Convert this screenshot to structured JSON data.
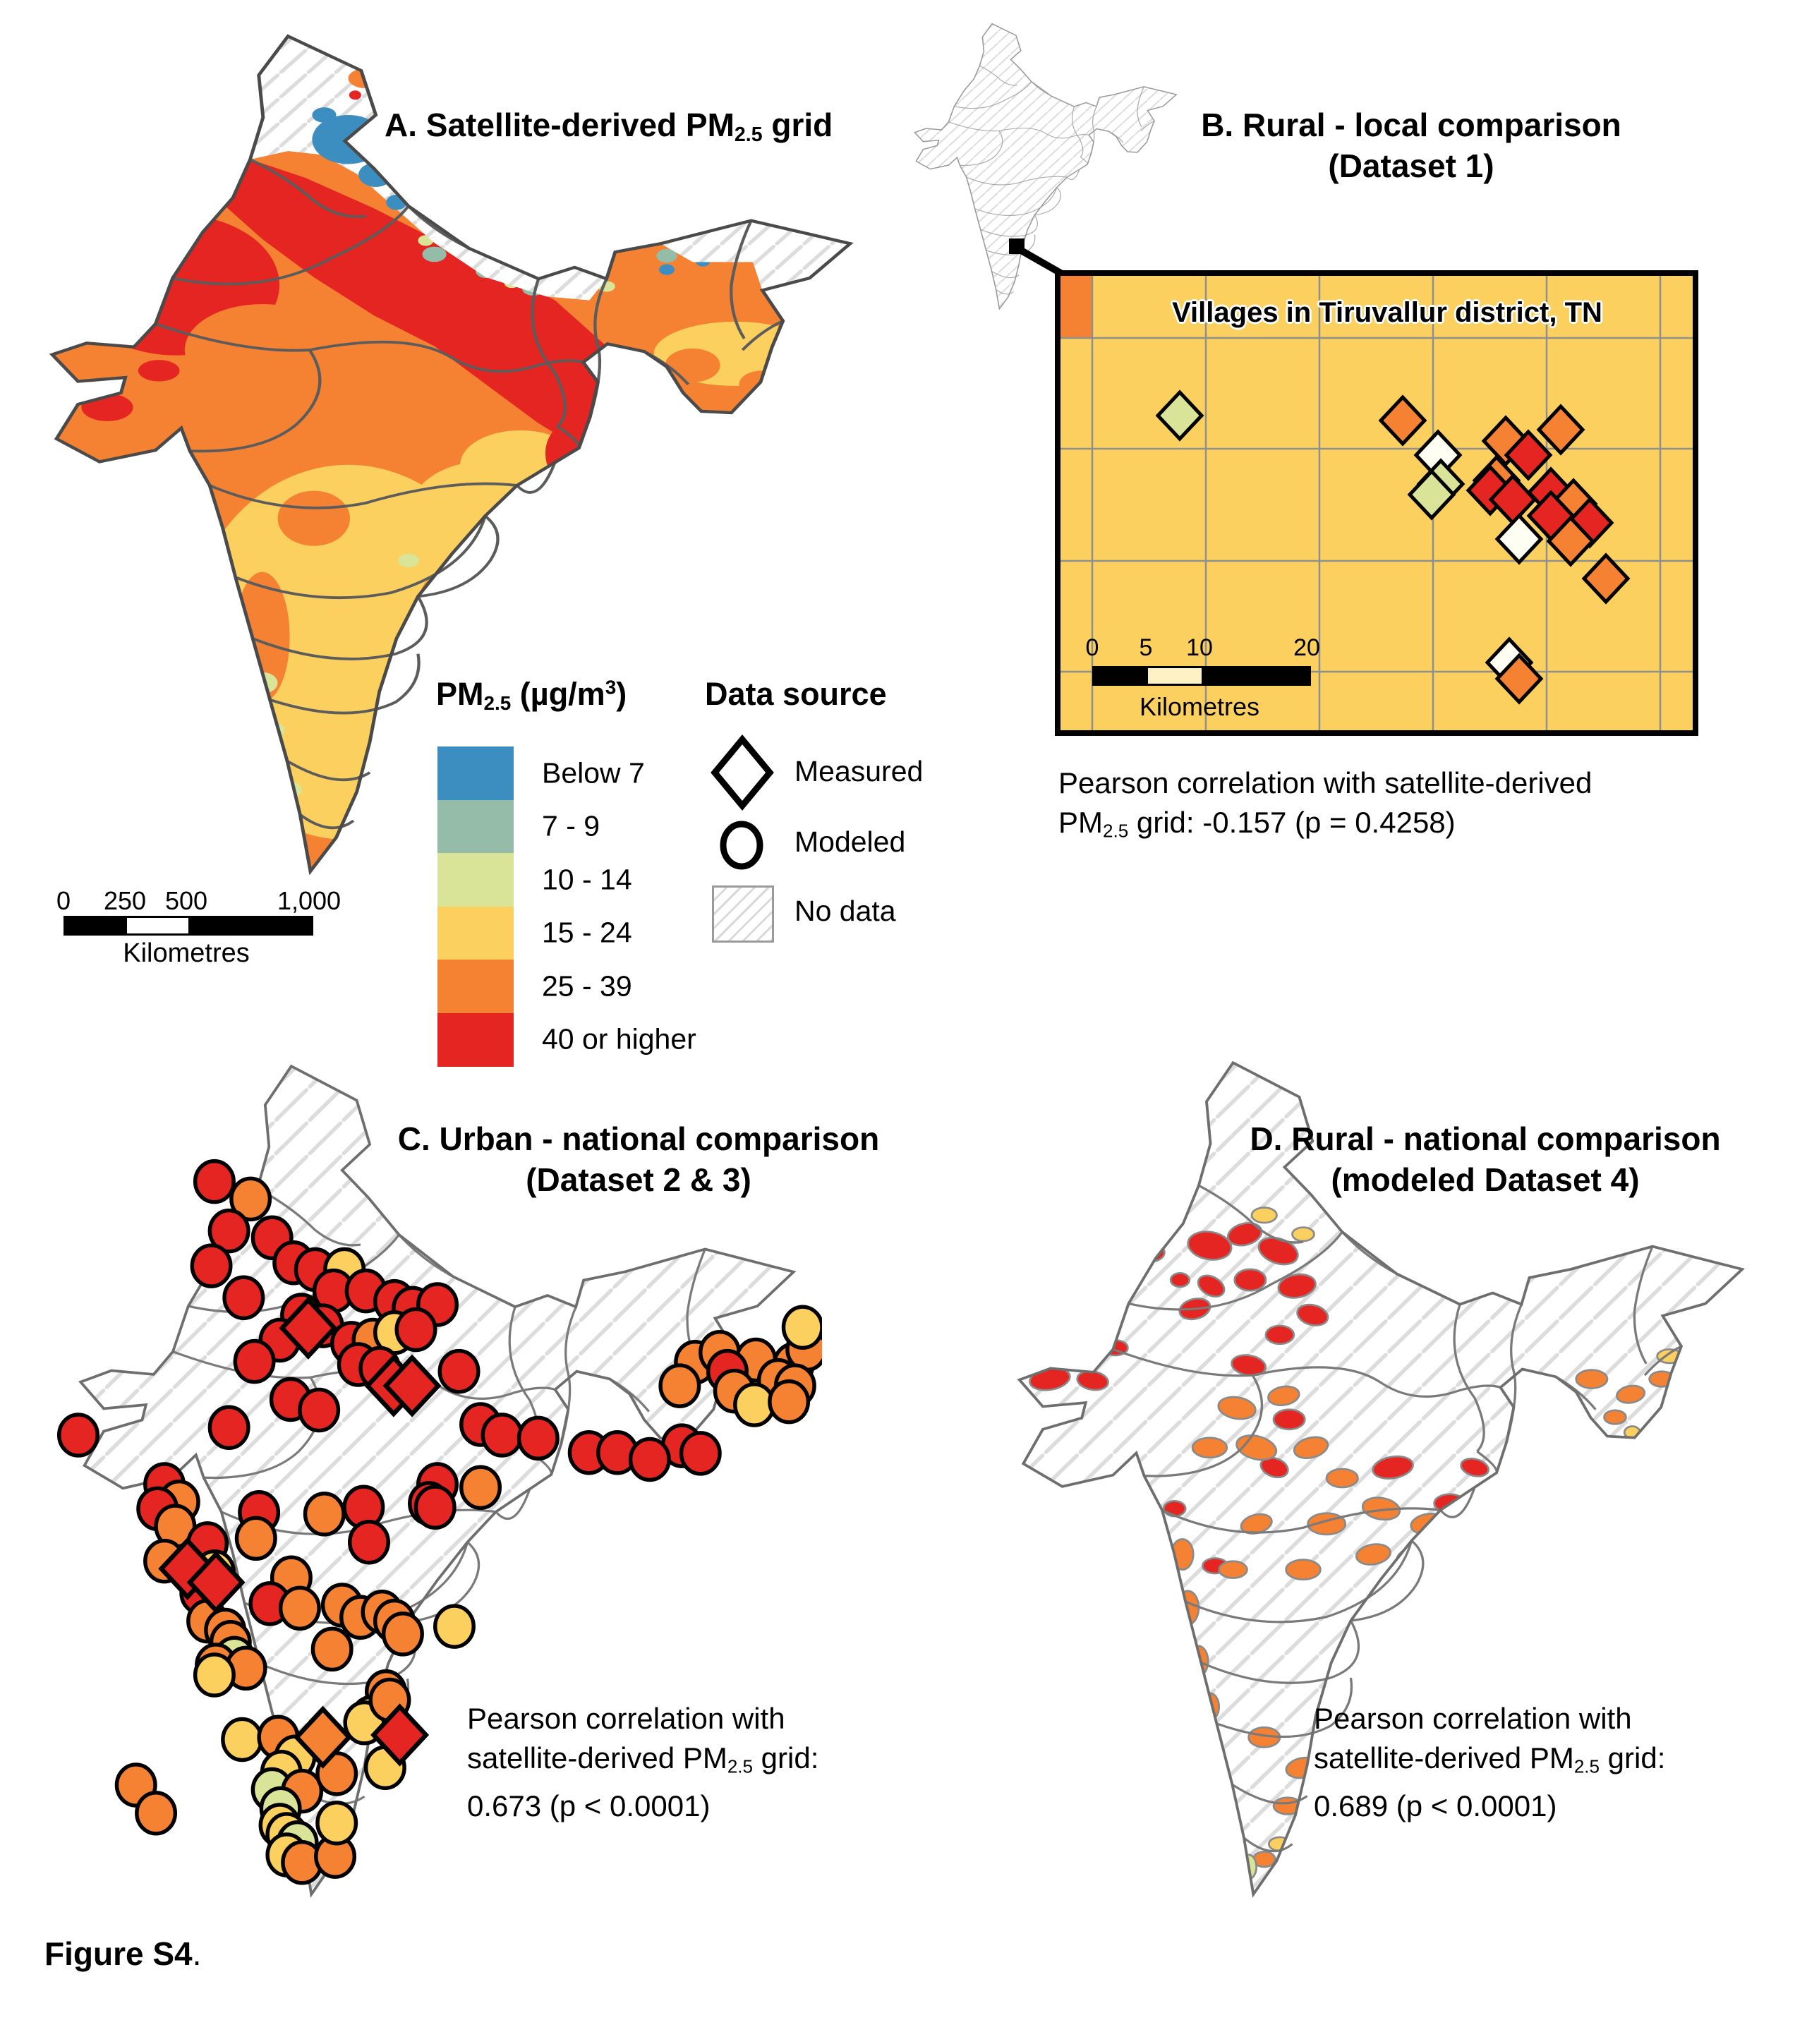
{
  "colors": {
    "R": "#E52522",
    "O": "#F58233",
    "Y": "#FCD05E",
    "G": "#D9E498",
    "W": "#FFFEF2",
    "teal": "#94BCA8",
    "blue": "#3D8EC0",
    "inset_bg": "#FCD05E",
    "inset_grid": "#8f8f8f",
    "hatch_line": "#dcdcdc",
    "state_border": "#6e6e6e"
  },
  "figure": {
    "label_bold": "Figure S4",
    "label_period": "."
  },
  "panelA": {
    "title": {
      "pre": "A. Satellite-derived PM",
      "sub": "2.5",
      "post": " grid"
    },
    "legend": {
      "title": {
        "pre": "PM",
        "sub": "2.5",
        "mid": " (µg/m",
        "sup": "3",
        "post": ")"
      },
      "classes": [
        {
          "label": "Below 7",
          "color": "#3D8EC0"
        },
        {
          "label": "7 - 9",
          "color": "#94BCA8"
        },
        {
          "label": "10 - 14",
          "color": "#D9E498"
        },
        {
          "label": "15 - 24",
          "color": "#FCD05E"
        },
        {
          "label": "25 - 39",
          "color": "#F58233"
        },
        {
          "label": "40 or higher",
          "color": "#E52522"
        }
      ]
    },
    "datasource": {
      "title": "Data source",
      "measured": "Measured",
      "modeled": "Modeled",
      "nodata": "No data"
    },
    "scalebar": {
      "ticks": [
        "0",
        "250",
        "500",
        "1,000"
      ],
      "unit": "Kilometres"
    }
  },
  "panelB": {
    "title_line1": "B. Rural - local comparison",
    "title_line2": "(Dataset 1)",
    "inset_title": "Villages in Tiruvallur district, TN",
    "scalebar": {
      "ticks": [
        "0",
        "5",
        "10",
        "20"
      ],
      "unit": "Kilometres"
    },
    "caption_line1": "Pearson correlation with satellite-derived",
    "caption_pm": "PM",
    "caption_sub": "2.5",
    "caption_rest": " grid: -0.157 (p = 0.4258)",
    "correlation": -0.157,
    "p_value": "0.4258",
    "village_diamonds": [
      [
        169,
        198,
        "G"
      ],
      [
        485,
        205,
        "O"
      ],
      [
        535,
        254,
        "W"
      ],
      [
        539,
        295,
        "G"
      ],
      [
        526,
        310,
        "G"
      ],
      [
        631,
        234,
        "O"
      ],
      [
        663,
        254,
        "R"
      ],
      [
        709,
        218,
        "O"
      ],
      [
        618,
        290,
        "O"
      ],
      [
        609,
        304,
        "R"
      ],
      [
        641,
        317,
        "R"
      ],
      [
        695,
        307,
        "R"
      ],
      [
        727,
        323,
        "O"
      ],
      [
        695,
        340,
        "R"
      ],
      [
        750,
        350,
        "R"
      ],
      [
        723,
        376,
        "O"
      ],
      [
        650,
        373,
        "W"
      ],
      [
        773,
        429,
        "O"
      ],
      [
        636,
        548,
        "W"
      ],
      [
        650,
        571,
        "O"
      ]
    ]
  },
  "panelC": {
    "title_line1": "C. Urban - national comparison",
    "title_line2": "(Dataset 2 & 3)",
    "caption_line1": "Pearson correlation with",
    "caption_line2_pre": "satellite-derived PM",
    "caption_sub": "2.5",
    "caption_line2_post": " grid:",
    "caption_line3": "0.673 (p < 0.0001)",
    "correlation": 0.673,
    "p_value": "< 0.0001",
    "circles": [
      [
        230,
        167,
        "R"
      ],
      [
        277,
        190,
        "O"
      ],
      [
        249,
        232,
        "R"
      ],
      [
        305,
        241,
        "R"
      ],
      [
        226,
        278,
        "R"
      ],
      [
        333,
        274,
        "R"
      ],
      [
        361,
        283,
        "R"
      ],
      [
        399,
        283,
        "Y"
      ],
      [
        385,
        311,
        "R"
      ],
      [
        427,
        311,
        "R"
      ],
      [
        464,
        325,
        "R"
      ],
      [
        488,
        334,
        "R"
      ],
      [
        520,
        329,
        "R"
      ],
      [
        268,
        320,
        "R"
      ],
      [
        343,
        343,
        "R"
      ],
      [
        371,
        357,
        "R"
      ],
      [
        315,
        376,
        "R"
      ],
      [
        408,
        380,
        "R"
      ],
      [
        436,
        376,
        "O"
      ],
      [
        464,
        366,
        "Y"
      ],
      [
        492,
        362,
        "R"
      ],
      [
        417,
        408,
        "R"
      ],
      [
        445,
        413,
        "R"
      ],
      [
        282,
        404,
        "R"
      ],
      [
        329,
        454,
        "R"
      ],
      [
        366,
        468,
        "R"
      ],
      [
        249,
        491,
        "R"
      ],
      [
        548,
        417,
        "R"
      ],
      [
        576,
        487,
        "R"
      ],
      [
        604,
        501,
        "R"
      ],
      [
        651,
        505,
        "R"
      ],
      [
        717,
        524,
        "R"
      ],
      [
        754,
        524,
        "R"
      ],
      [
        838,
        515,
        "R"
      ],
      [
        520,
        566,
        "R"
      ],
      [
        576,
        570,
        "O"
      ],
      [
        796,
        533,
        "R"
      ],
      [
        862,
        525,
        "R"
      ],
      [
        855,
        405,
        "O"
      ],
      [
        887,
        392,
        "O"
      ],
      [
        934,
        402,
        "O"
      ],
      [
        897,
        417,
        "R"
      ],
      [
        983,
        408,
        "O"
      ],
      [
        1000,
        388,
        "O"
      ],
      [
        995,
        359,
        "Y"
      ],
      [
        963,
        429,
        "O"
      ],
      [
        985,
        436,
        "O"
      ],
      [
        906,
        443,
        "O"
      ],
      [
        932,
        461,
        "Y"
      ],
      [
        977,
        457,
        "O"
      ],
      [
        835,
        436,
        "O"
      ],
      [
        53,
        501,
        "R"
      ],
      [
        165,
        566,
        "R"
      ],
      [
        184,
        589,
        "O"
      ],
      [
        156,
        598,
        "R"
      ],
      [
        179,
        621,
        "O"
      ],
      [
        221,
        644,
        "R"
      ],
      [
        165,
        667,
        "O"
      ],
      [
        212,
        709,
        "R"
      ],
      [
        230,
        681,
        "Y"
      ],
      [
        221,
        746,
        "O"
      ],
      [
        288,
        603,
        "R"
      ],
      [
        373,
        605,
        "O"
      ],
      [
        424,
        596,
        "R"
      ],
      [
        509,
        591,
        "R"
      ],
      [
        517,
        596,
        "R"
      ],
      [
        284,
        637,
        "O"
      ],
      [
        431,
        642,
        "R"
      ],
      [
        330,
        689,
        "O"
      ],
      [
        302,
        723,
        "R"
      ],
      [
        341,
        729,
        "O"
      ],
      [
        396,
        725,
        "O"
      ],
      [
        420,
        741,
        "O"
      ],
      [
        448,
        734,
        "O"
      ],
      [
        464,
        746,
        "O"
      ],
      [
        475,
        763,
        "O"
      ],
      [
        542,
        753,
        "Y"
      ],
      [
        383,
        783,
        "O"
      ],
      [
        244,
        758,
        "O"
      ],
      [
        251,
        774,
        "O"
      ],
      [
        256,
        795,
        "G"
      ],
      [
        232,
        804,
        "O"
      ],
      [
        271,
        808,
        "O"
      ],
      [
        230,
        817,
        "Y"
      ],
      [
        453,
        839,
        "O"
      ],
      [
        434,
        873,
        "Y"
      ],
      [
        425,
        880,
        "Y"
      ],
      [
        458,
        850,
        "O"
      ],
      [
        128,
        962,
        "O"
      ],
      [
        154,
        999,
        "O"
      ],
      [
        266,
        902,
        "Y"
      ],
      [
        313,
        899,
        "O"
      ],
      [
        335,
        925,
        "Y"
      ],
      [
        317,
        945,
        "Y"
      ],
      [
        305,
        968,
        "G"
      ],
      [
        344,
        970,
        "O"
      ],
      [
        316,
        993,
        "G"
      ],
      [
        315,
        1015,
        "Y"
      ],
      [
        324,
        1027,
        "Y"
      ],
      [
        338,
        1038,
        "G"
      ],
      [
        324,
        1054,
        "Y"
      ],
      [
        344,
        1064,
        "O"
      ],
      [
        387,
        1056,
        "O"
      ],
      [
        389,
        1012,
        "Y"
      ],
      [
        389,
        947,
        "O"
      ],
      [
        452,
        939,
        "Y"
      ]
    ],
    "diamonds": [
      [
        352,
        360,
        "R"
      ],
      [
        463,
        436,
        "R"
      ],
      [
        487,
        436,
        "R"
      ],
      [
        195,
        677,
        "R"
      ],
      [
        232,
        695,
        "R"
      ],
      [
        371,
        899,
        "O"
      ],
      [
        471,
        896,
        "R"
      ]
    ]
  },
  "panelD": {
    "title_line1": "D. Rural - national comparison",
    "title_line2": "(modeled Dataset 4)",
    "caption_line1": "Pearson correlation with",
    "caption_line2_pre": "satellite-derived PM",
    "caption_sub": "2.5",
    "caption_line2_post": " grid:",
    "caption_line3": "0.689 (p < 0.0001)",
    "correlation": 0.689,
    "p_value": "< 0.0001",
    "district_blobs": [
      [
        300,
        255,
        28,
        18,
        10,
        "R"
      ],
      [
        345,
        240,
        22,
        14,
        -15,
        "R"
      ],
      [
        388,
        262,
        26,
        16,
        20,
        "R"
      ],
      [
        352,
        300,
        20,
        14,
        0,
        "R"
      ],
      [
        302,
        308,
        18,
        12,
        30,
        "R"
      ],
      [
        412,
        308,
        24,
        15,
        -10,
        "R"
      ],
      [
        432,
        346,
        20,
        13,
        15,
        "R"
      ],
      [
        390,
        372,
        18,
        12,
        0,
        "R"
      ],
      [
        262,
        300,
        12,
        9,
        0,
        "R"
      ],
      [
        95,
        430,
        26,
        14,
        -10,
        "R"
      ],
      [
        150,
        432,
        20,
        12,
        10,
        "R"
      ],
      [
        179,
        389,
        16,
        10,
        0,
        "R"
      ],
      [
        224,
        264,
        18,
        12,
        0,
        "R"
      ],
      [
        281,
        338,
        20,
        13,
        -15,
        "R"
      ],
      [
        350,
        412,
        22,
        13,
        10,
        "R"
      ],
      [
        402,
        483,
        20,
        13,
        0,
        "R"
      ],
      [
        383,
        546,
        18,
        12,
        20,
        "R"
      ],
      [
        535,
        546,
        26,
        14,
        -10,
        "R"
      ],
      [
        608,
        593,
        20,
        12,
        0,
        "R"
      ],
      [
        640,
        546,
        18,
        11,
        15,
        "R"
      ],
      [
        561,
        663,
        22,
        13,
        -20,
        "R"
      ],
      [
        307,
        675,
        16,
        10,
        0,
        "R"
      ],
      [
        212,
        734,
        12,
        18,
        0,
        "R"
      ],
      [
        255,
        600,
        14,
        10,
        0,
        "R"
      ],
      [
        335,
        468,
        24,
        14,
        10,
        "O"
      ],
      [
        395,
        452,
        20,
        12,
        -10,
        "O"
      ],
      [
        300,
        520,
        22,
        13,
        0,
        "O"
      ],
      [
        360,
        520,
        26,
        15,
        15,
        "O"
      ],
      [
        430,
        520,
        22,
        13,
        -15,
        "O"
      ],
      [
        470,
        560,
        20,
        12,
        0,
        "O"
      ],
      [
        520,
        600,
        24,
        14,
        10,
        "O"
      ],
      [
        580,
        620,
        22,
        13,
        -10,
        "O"
      ],
      [
        640,
        640,
        20,
        12,
        0,
        "O"
      ],
      [
        650,
        600,
        18,
        11,
        10,
        "O"
      ],
      [
        450,
        620,
        24,
        14,
        0,
        "O"
      ],
      [
        510,
        660,
        22,
        13,
        -10,
        "O"
      ],
      [
        560,
        700,
        20,
        12,
        10,
        "O"
      ],
      [
        420,
        680,
        22,
        13,
        0,
        "O"
      ],
      [
        360,
        620,
        20,
        12,
        -15,
        "O"
      ],
      [
        330,
        680,
        18,
        11,
        0,
        "O"
      ],
      [
        265,
        660,
        14,
        20,
        0,
        "O"
      ],
      [
        272,
        730,
        14,
        22,
        0,
        "O"
      ],
      [
        285,
        800,
        13,
        20,
        0,
        "O"
      ],
      [
        300,
        860,
        12,
        18,
        0,
        "O"
      ],
      [
        790,
        430,
        20,
        12,
        0,
        "O"
      ],
      [
        840,
        450,
        18,
        11,
        -10,
        "O"
      ],
      [
        760,
        470,
        16,
        10,
        10,
        "O"
      ],
      [
        880,
        430,
        16,
        10,
        0,
        "O"
      ],
      [
        820,
        480,
        14,
        9,
        0,
        "O"
      ],
      [
        370,
        900,
        20,
        13,
        0,
        "O"
      ],
      [
        420,
        940,
        22,
        13,
        -10,
        "O"
      ],
      [
        400,
        990,
        18,
        11,
        0,
        "O"
      ],
      [
        430,
        1050,
        16,
        12,
        10,
        "O"
      ],
      [
        370,
        1060,
        14,
        10,
        0,
        "O"
      ],
      [
        410,
        1105,
        12,
        9,
        0,
        "O"
      ],
      [
        370,
        215,
        16,
        10,
        0,
        "Y"
      ],
      [
        420,
        240,
        14,
        9,
        0,
        "Y"
      ],
      [
        480,
        820,
        22,
        13,
        0,
        "Y"
      ],
      [
        530,
        800,
        20,
        12,
        -10,
        "Y"
      ],
      [
        560,
        850,
        18,
        11,
        0,
        "Y"
      ],
      [
        500,
        870,
        16,
        10,
        10,
        "Y"
      ],
      [
        615,
        660,
        12,
        8,
        0,
        "Y"
      ],
      [
        390,
        1040,
        14,
        9,
        0,
        "Y"
      ],
      [
        450,
        980,
        14,
        9,
        0,
        "Y"
      ],
      [
        890,
        400,
        16,
        9,
        0,
        "Y"
      ],
      [
        920,
        380,
        12,
        8,
        0,
        "Y"
      ],
      [
        842,
        500,
        10,
        8,
        0,
        "Y"
      ],
      [
        560,
        760,
        16,
        10,
        0,
        "Y"
      ],
      [
        310,
        935,
        10,
        14,
        0,
        "G"
      ],
      [
        350,
        1070,
        10,
        16,
        0,
        "G"
      ],
      [
        358,
        1115,
        8,
        12,
        0,
        "G"
      ]
    ]
  }
}
